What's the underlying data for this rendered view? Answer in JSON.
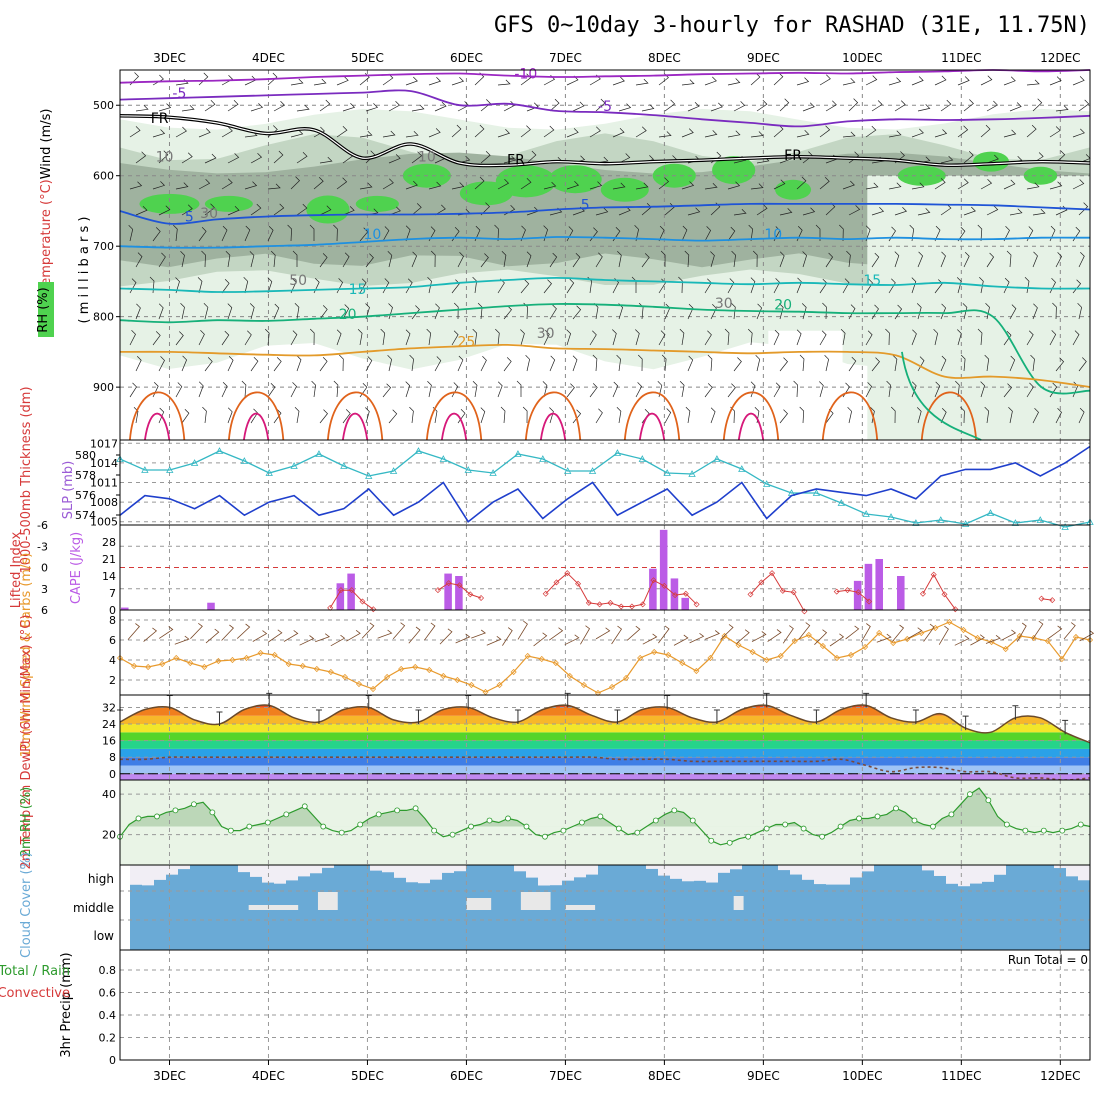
{
  "title": "GFS 0~10day 3-hourly for RASHAD (31E, 11.75N)",
  "days": [
    "3DEC",
    "4DEC",
    "5DEC",
    "6DEC",
    "7DEC",
    "8DEC",
    "9DEC",
    "10DEC",
    "11DEC",
    "12DEC"
  ],
  "colors": {
    "rh_light": "#e6f2e6",
    "rh_mid": "#c3d6c3",
    "rh_dark": "#9fb29f",
    "rh_green": "#4fd24f",
    "temp_neg10": "#9b27c2",
    "temp_neg5": "#7a2bbf",
    "temp_5": "#1f54d6",
    "temp_10": "#1e90e0",
    "temp_15": "#19b8b8",
    "temp_20": "#16b07a",
    "temp_25": "#e39a2a",
    "temp_30": "#e0631b",
    "temp_35": "#d6197a",
    "thickness": "#35b8c4",
    "slp": "#1f3fcc",
    "lifted": "#d63a3a",
    "cape": "#bb5ce6",
    "wind10": "#e89a2d",
    "barb": "#7a4a2a",
    "rh2m": "#2e9b2e",
    "cloud": "#6aaad6"
  },
  "chart_data": [
    {
      "type": "heatmap",
      "panel": "upper-air",
      "ylabel_parts": [
        "RH (%)",
        "Temperature (°C)",
        "Wind (m/s)"
      ],
      "ylabel2": "( m i l l i b a r s )",
      "yticks": [
        500,
        600,
        700,
        800,
        900
      ],
      "ylim": [
        450,
        975
      ],
      "x_range_days": [
        2.5,
        12.3
      ],
      "contour_labels": [
        "-10",
        "-5",
        "-5",
        "FR",
        "FR",
        "FR",
        "10",
        "5",
        "5",
        "10",
        "10",
        "15",
        "15",
        "20",
        "20",
        "25",
        "30",
        "30",
        "30",
        "50",
        "10"
      ],
      "isotherms": [
        {
          "label": "-10",
          "p": [
            468,
            466,
            465,
            463,
            460,
            458,
            456,
            455,
            458,
            460,
            459,
            458,
            456,
            455,
            454,
            455,
            453,
            452,
            450,
            452,
            450
          ]
        },
        {
          "label": "-5",
          "p": [
            492,
            490,
            488,
            486,
            484,
            482,
            480,
            500,
            498,
            508,
            510,
            514,
            520,
            525,
            530,
            523,
            520,
            521,
            520,
            518,
            515
          ]
        },
        {
          "label": "FR",
          "p": [
            515,
            517,
            525,
            540,
            535,
            575,
            555,
            582,
            585,
            580,
            583,
            580,
            578,
            575,
            573,
            575,
            578,
            585,
            583,
            580,
            582
          ]
        },
        {
          "label": "5",
          "p": [
            650,
            668,
            662,
            658,
            656,
            655,
            655,
            654,
            652,
            648,
            645,
            644,
            642,
            640,
            640,
            640,
            640,
            641,
            642,
            645,
            648
          ]
        },
        {
          "label": "10",
          "p": [
            700,
            702,
            702,
            700,
            698,
            694,
            690,
            688,
            690,
            687,
            688,
            690,
            692,
            690,
            688,
            690,
            688,
            690,
            690,
            688,
            688
          ]
        },
        {
          "label": "15",
          "p": [
            760,
            762,
            765,
            764,
            762,
            760,
            758,
            752,
            748,
            745,
            748,
            750,
            752,
            754,
            752,
            754,
            755,
            752,
            757,
            760,
            760
          ]
        },
        {
          "label": "20",
          "p": [
            805,
            808,
            805,
            806,
            803,
            800,
            795,
            790,
            785,
            782,
            783,
            786,
            790,
            792,
            793,
            795,
            795,
            795,
            800,
            900,
            905
          ]
        },
        {
          "label": "25",
          "p": [
            850,
            850,
            852,
            854,
            855,
            850,
            845,
            842,
            840,
            845,
            846,
            848,
            850,
            852,
            850,
            850,
            855,
            885,
            885,
            890,
            900
          ]
        }
      ]
    },
    {
      "type": "line",
      "panel": "thickness-slp",
      "ylabel_left": "1000-500mb Thickness (dm)",
      "ylabel_right": "SLP (mb)",
      "yticks_left": [
        574,
        576,
        578,
        580
      ],
      "yticks_right": [
        1005,
        1008,
        1011,
        1014,
        1017
      ],
      "ylim_left": [
        573,
        581.5
      ],
      "ylim_right": [
        1004.5,
        1017.5
      ],
      "series": [
        {
          "name": "1000-500mb Thickness (dm)",
          "values": [
            579.6,
            578.5,
            578.5,
            579.2,
            580.4,
            579.4,
            578.2,
            578.9,
            580.1,
            578.9,
            577.9,
            578.4,
            580.4,
            579.6,
            578.5,
            578.2,
            580.1,
            579.6,
            578.4,
            578.4,
            580.2,
            579.6,
            578.2,
            578.1,
            579.6,
            578.6,
            577.1,
            576.2,
            576.2,
            575.2,
            574.1,
            573.8,
            573.2,
            573.5,
            573.1,
            574.2,
            573.2,
            573.5,
            572.8,
            573.3
          ]
        },
        {
          "name": "SLP (mb)",
          "values": [
            1006,
            1009,
            1008.5,
            1007,
            1009,
            1006,
            1008,
            1009,
            1006,
            1007,
            1010,
            1006,
            1008,
            1011,
            1005,
            1008,
            1010,
            1005.5,
            1008.5,
            1011,
            1006,
            1008,
            1010,
            1006,
            1008,
            1011,
            1005.5,
            1009,
            1010,
            1009.5,
            1009,
            1010,
            1008.5,
            1012,
            1013,
            1013,
            1014,
            1012,
            1014,
            1016.5
          ]
        }
      ]
    },
    {
      "type": "bar",
      "panel": "lifted-cape",
      "ylabel_left": "Lifted Index",
      "ylabel_right": "CAPE (J/kg)",
      "yticks_left": [
        "-6",
        "-3",
        "0",
        "3",
        "6"
      ],
      "yticks_right": [
        "0",
        "7",
        "14",
        "21",
        "28"
      ],
      "lifted_zero_line": 0,
      "series": [
        {
          "name": "CAPE (J/kg)",
          "values": [
            1,
            0,
            0,
            0,
            0,
            0,
            0,
            0,
            3,
            0,
            0,
            0,
            0,
            0,
            0,
            0,
            0,
            0,
            0,
            0,
            11,
            15,
            0,
            0,
            0,
            0,
            0,
            0,
            0,
            0,
            15,
            14,
            0,
            0,
            0,
            0,
            0,
            0,
            0,
            0,
            0,
            0,
            0,
            0,
            0,
            0,
            0,
            0,
            0,
            17,
            33,
            13,
            5,
            0,
            0,
            0,
            0,
            0,
            0,
            0,
            0,
            0,
            0,
            0,
            0,
            0,
            0,
            0,
            12,
            19,
            21,
            0,
            14,
            0,
            0,
            0,
            0,
            0,
            0,
            0,
            0,
            0,
            0,
            0,
            0,
            0,
            0,
            0,
            0,
            0
          ]
        },
        {
          "name": "Lifted Index",
          "values": [
            null,
            null,
            null,
            null,
            null,
            null,
            null,
            null,
            null,
            null,
            null,
            null,
            null,
            null,
            null,
            null,
            null,
            null,
            null,
            5.7,
            3.2,
            3.2,
            4.8,
            5.9,
            null,
            null,
            null,
            null,
            null,
            3.2,
            2.2,
            2.5,
            3.8,
            4.3,
            null,
            null,
            null,
            null,
            null,
            3.7,
            2.1,
            0.8,
            2.3,
            5.0,
            5.2,
            5.0,
            5.5,
            5.5,
            5.2,
            1.8,
            2.6,
            3.9,
            3.7,
            5.2,
            null,
            null,
            null,
            null,
            3.8,
            2.1,
            0.8,
            3.3,
            3.5,
            6.2,
            null,
            null,
            3.4,
            3.2,
            3.5,
            4.8,
            null,
            null,
            null,
            null,
            3.7,
            1.0,
            3.8,
            5.9,
            null,
            null,
            null,
            null,
            null,
            null,
            null,
            4.4,
            4.6,
            null,
            null,
            null
          ]
        }
      ]
    },
    {
      "type": "line",
      "panel": "wind10m",
      "ylabel": "10m Wind Speed & Barbs (m/s)",
      "yticks": [
        2,
        4,
        6,
        8
      ],
      "ylim": [
        0.5,
        9
      ],
      "series": [
        {
          "name": "10m Wind Speed",
          "values": [
            4.2,
            3.4,
            3.3,
            3.6,
            4.2,
            3.7,
            3.3,
            3.9,
            4.0,
            4.2,
            4.7,
            4.5,
            3.6,
            3.4,
            3.1,
            2.8,
            2.3,
            1.6,
            1.1,
            2.3,
            3.1,
            3.3,
            3.0,
            2.4,
            2.0,
            1.5,
            0.8,
            1.5,
            2.8,
            4.4,
            4.1,
            3.7,
            2.4,
            1.5,
            0.7,
            1.3,
            2.2,
            4.2,
            4.8,
            4.5,
            3.7,
            2.9,
            4.2,
            6.4,
            5.5,
            4.8,
            4.0,
            4.4,
            5.9,
            6.5,
            5.4,
            4.2,
            4.5,
            5.3,
            6.7,
            5.7,
            6.1,
            6.7,
            7.2,
            7.8,
            7.0,
            6.2,
            5.8,
            5.1,
            6.4,
            6.2,
            5.9,
            4.1,
            6.3,
            6.0
          ]
        }
      ]
    },
    {
      "type": "area",
      "panel": "temp2m",
      "ylabel": "2m Temp 2m DewPt (6hr Min/Max) (°C)",
      "yticks": [
        0,
        8,
        16,
        24,
        32
      ],
      "ylim": [
        -3,
        38
      ],
      "series": [
        {
          "name": "2m Temp",
          "values": [
            25,
            31,
            32,
            26,
            24,
            31,
            33,
            27,
            25,
            31,
            32,
            26,
            25,
            31,
            32,
            27,
            25,
            31,
            33,
            28,
            25,
            31,
            32,
            27,
            25,
            31,
            33,
            28,
            25,
            31,
            33,
            27,
            25,
            29,
            22,
            20,
            27,
            27,
            20,
            15
          ]
        },
        {
          "name": "2m DewPt",
          "values": [
            7,
            7,
            8,
            8,
            8,
            8,
            8,
            8,
            8,
            8,
            8,
            8,
            8,
            8,
            8,
            8,
            8,
            8,
            8,
            8,
            7,
            7,
            7,
            6,
            6,
            6,
            6,
            6,
            6,
            7,
            4,
            1,
            3,
            3,
            1,
            1,
            -2,
            -2,
            -3,
            -2
          ]
        }
      ]
    },
    {
      "type": "area",
      "panel": "rh2m",
      "ylabel": "2m RH (%)",
      "yticks": [
        20,
        40
      ],
      "ylim": [
        5,
        47
      ],
      "series": [
        {
          "name": "2m RH",
          "values": [
            19,
            25,
            28,
            29,
            29,
            31,
            32,
            33,
            35,
            36,
            31,
            24,
            22,
            22,
            24,
            25,
            26,
            28,
            30,
            32,
            34,
            29,
            24,
            22,
            21,
            22,
            25,
            28,
            30,
            31,
            32,
            32,
            33,
            28,
            22,
            19,
            20,
            22,
            24,
            25,
            27,
            26,
            28,
            27,
            24,
            20,
            19,
            21,
            22,
            24,
            26,
            28,
            29,
            26,
            23,
            20,
            21,
            24,
            27,
            30,
            32,
            31,
            27,
            22,
            17,
            15,
            16,
            18,
            19,
            21,
            23,
            25,
            25,
            26,
            23,
            20,
            19,
            21,
            24,
            27,
            28,
            28,
            29,
            30,
            33,
            31,
            27,
            25,
            24,
            28,
            30,
            35,
            40,
            43,
            37,
            29,
            25,
            23,
            22,
            21,
            22,
            21,
            22,
            23,
            25,
            24
          ]
        }
      ]
    },
    {
      "type": "heatmap",
      "panel": "cloud",
      "ylabel": "Cloud Cover (%)",
      "levels": [
        "high",
        "middle",
        "low"
      ]
    },
    {
      "type": "bar",
      "panel": "precip",
      "ylabel": "3hr Precip (mm)",
      "ylabel_side": [
        "Total / Rain",
        "Convective"
      ],
      "yticks": [
        "0",
        "0.2",
        "0.4",
        "0.6",
        "0.8"
      ],
      "annotation": "Run Total = 0",
      "values": []
    }
  ]
}
